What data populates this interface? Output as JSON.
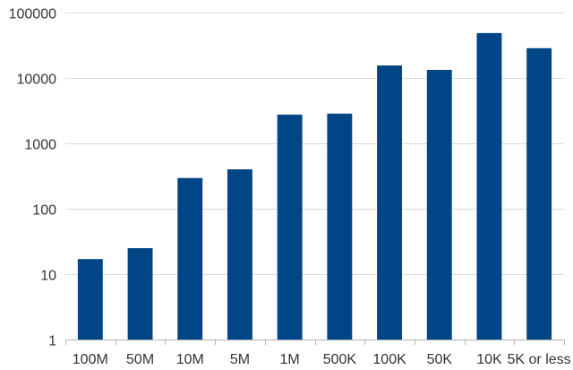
{
  "chart_data": {
    "type": "bar",
    "categories": [
      "100M",
      "50M",
      "10M",
      "5M",
      "1M",
      "500K",
      "100K",
      "50K",
      "10K",
      "5K or less"
    ],
    "values": [
      17,
      25,
      295,
      400,
      2750,
      2850,
      15500,
      13300,
      48500,
      28500
    ],
    "y_scale": "log",
    "ylim": [
      1,
      100000
    ],
    "y_ticks": [
      1,
      10,
      100,
      1000,
      10000,
      100000
    ],
    "y_tick_labels": [
      "1",
      "10",
      "100",
      "1000",
      "10000",
      "100000"
    ],
    "title": "",
    "xlabel": "",
    "ylabel": "",
    "grid": true,
    "legend": "none",
    "bar_color": "#004586"
  }
}
